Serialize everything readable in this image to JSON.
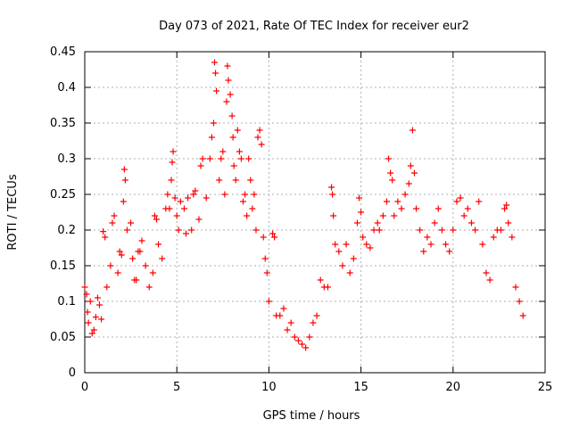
{
  "chart_data": {
    "type": "scatter",
    "title": "Day 073 of 2021, Rate Of TEC Index for receiver eur2",
    "xlabel": "GPS time / hours",
    "ylabel": "ROTI / TECUs",
    "xlim": [
      0,
      25
    ],
    "ylim": [
      0,
      0.45
    ],
    "xticks": [
      0,
      5,
      10,
      15,
      20,
      25
    ],
    "xtick_labels": [
      "0",
      "5",
      "10",
      "15",
      "20",
      "25"
    ],
    "yticks": [
      0,
      0.05,
      0.1,
      0.15,
      0.2,
      0.25,
      0.3,
      0.35,
      0.4,
      0.45
    ],
    "ytick_labels": [
      "0",
      "0.05",
      "0.1",
      "0.15",
      "0.2",
      "0.25",
      "0.3",
      "0.35",
      "0.4",
      "0.45"
    ],
    "grid": true,
    "marker": "plus",
    "marker_color": "#ff0000",
    "series": [
      {
        "values": [
          [
            0.0,
            0.12
          ],
          [
            0.1,
            0.11
          ],
          [
            0.15,
            0.085
          ],
          [
            0.2,
            0.07
          ],
          [
            0.3,
            0.1
          ],
          [
            0.4,
            0.055
          ],
          [
            0.5,
            0.06
          ],
          [
            0.6,
            0.078
          ],
          [
            0.7,
            0.105
          ],
          [
            0.8,
            0.095
          ],
          [
            0.9,
            0.075
          ],
          [
            1.0,
            0.198
          ],
          [
            1.1,
            0.19
          ],
          [
            1.2,
            0.12
          ],
          [
            1.4,
            0.15
          ],
          [
            1.5,
            0.21
          ],
          [
            1.6,
            0.22
          ],
          [
            1.8,
            0.14
          ],
          [
            1.9,
            0.17
          ],
          [
            2.0,
            0.165
          ],
          [
            2.1,
            0.24
          ],
          [
            2.15,
            0.285
          ],
          [
            2.2,
            0.27
          ],
          [
            2.3,
            0.2
          ],
          [
            2.5,
            0.21
          ],
          [
            2.6,
            0.16
          ],
          [
            2.7,
            0.13
          ],
          [
            2.8,
            0.13
          ],
          [
            2.9,
            0.17
          ],
          [
            3.0,
            0.17
          ],
          [
            3.1,
            0.185
          ],
          [
            3.3,
            0.15
          ],
          [
            3.5,
            0.12
          ],
          [
            3.7,
            0.14
          ],
          [
            3.8,
            0.22
          ],
          [
            3.9,
            0.215
          ],
          [
            4.0,
            0.18
          ],
          [
            4.2,
            0.16
          ],
          [
            4.4,
            0.23
          ],
          [
            4.5,
            0.25
          ],
          [
            4.6,
            0.23
          ],
          [
            4.7,
            0.27
          ],
          [
            4.75,
            0.295
          ],
          [
            4.8,
            0.31
          ],
          [
            4.9,
            0.245
          ],
          [
            5.0,
            0.22
          ],
          [
            5.1,
            0.2
          ],
          [
            5.2,
            0.24
          ],
          [
            5.4,
            0.23
          ],
          [
            5.5,
            0.195
          ],
          [
            5.6,
            0.245
          ],
          [
            5.8,
            0.2
          ],
          [
            5.9,
            0.25
          ],
          [
            6.0,
            0.255
          ],
          [
            6.2,
            0.215
          ],
          [
            6.3,
            0.29
          ],
          [
            6.4,
            0.3
          ],
          [
            6.6,
            0.245
          ],
          [
            6.8,
            0.3
          ],
          [
            6.9,
            0.33
          ],
          [
            7.0,
            0.35
          ],
          [
            7.05,
            0.435
          ],
          [
            7.1,
            0.42
          ],
          [
            7.15,
            0.395
          ],
          [
            7.3,
            0.27
          ],
          [
            7.4,
            0.3
          ],
          [
            7.5,
            0.31
          ],
          [
            7.6,
            0.25
          ],
          [
            7.7,
            0.38
          ],
          [
            7.75,
            0.43
          ],
          [
            7.8,
            0.41
          ],
          [
            7.9,
            0.39
          ],
          [
            8.0,
            0.36
          ],
          [
            8.05,
            0.33
          ],
          [
            8.1,
            0.29
          ],
          [
            8.2,
            0.27
          ],
          [
            8.3,
            0.34
          ],
          [
            8.4,
            0.31
          ],
          [
            8.5,
            0.3
          ],
          [
            8.6,
            0.24
          ],
          [
            8.7,
            0.25
          ],
          [
            8.8,
            0.22
          ],
          [
            8.9,
            0.3
          ],
          [
            9.0,
            0.27
          ],
          [
            9.1,
            0.23
          ],
          [
            9.2,
            0.25
          ],
          [
            9.3,
            0.2
          ],
          [
            9.4,
            0.33
          ],
          [
            9.5,
            0.34
          ],
          [
            9.6,
            0.32
          ],
          [
            9.7,
            0.19
          ],
          [
            9.8,
            0.16
          ],
          [
            9.9,
            0.14
          ],
          [
            10.0,
            0.1
          ],
          [
            10.2,
            0.195
          ],
          [
            10.3,
            0.19
          ],
          [
            10.4,
            0.08
          ],
          [
            10.6,
            0.08
          ],
          [
            10.8,
            0.09
          ],
          [
            11.0,
            0.06
          ],
          [
            11.2,
            0.07
          ],
          [
            11.4,
            0.05
          ],
          [
            11.6,
            0.045
          ],
          [
            11.8,
            0.04
          ],
          [
            12.0,
            0.035
          ],
          [
            12.2,
            0.05
          ],
          [
            12.4,
            0.07
          ],
          [
            12.6,
            0.08
          ],
          [
            12.8,
            0.13
          ],
          [
            13.0,
            0.12
          ],
          [
            13.2,
            0.12
          ],
          [
            13.4,
            0.26
          ],
          [
            13.45,
            0.25
          ],
          [
            13.5,
            0.22
          ],
          [
            13.6,
            0.18
          ],
          [
            13.8,
            0.17
          ],
          [
            14.0,
            0.15
          ],
          [
            14.2,
            0.18
          ],
          [
            14.4,
            0.14
          ],
          [
            14.6,
            0.16
          ],
          [
            14.8,
            0.21
          ],
          [
            14.9,
            0.245
          ],
          [
            15.0,
            0.225
          ],
          [
            15.1,
            0.19
          ],
          [
            15.3,
            0.18
          ],
          [
            15.5,
            0.175
          ],
          [
            15.7,
            0.2
          ],
          [
            15.9,
            0.21
          ],
          [
            16.0,
            0.2
          ],
          [
            16.2,
            0.22
          ],
          [
            16.4,
            0.24
          ],
          [
            16.5,
            0.3
          ],
          [
            16.6,
            0.28
          ],
          [
            16.7,
            0.27
          ],
          [
            16.8,
            0.22
          ],
          [
            17.0,
            0.24
          ],
          [
            17.2,
            0.23
          ],
          [
            17.4,
            0.25
          ],
          [
            17.6,
            0.265
          ],
          [
            17.7,
            0.29
          ],
          [
            17.8,
            0.34
          ],
          [
            17.9,
            0.28
          ],
          [
            18.0,
            0.23
          ],
          [
            18.2,
            0.2
          ],
          [
            18.4,
            0.17
          ],
          [
            18.6,
            0.19
          ],
          [
            18.8,
            0.18
          ],
          [
            19.0,
            0.21
          ],
          [
            19.2,
            0.23
          ],
          [
            19.4,
            0.2
          ],
          [
            19.6,
            0.18
          ],
          [
            19.8,
            0.17
          ],
          [
            20.0,
            0.2
          ],
          [
            20.2,
            0.24
          ],
          [
            20.4,
            0.245
          ],
          [
            20.6,
            0.22
          ],
          [
            20.8,
            0.23
          ],
          [
            21.0,
            0.21
          ],
          [
            21.2,
            0.2
          ],
          [
            21.4,
            0.24
          ],
          [
            21.6,
            0.18
          ],
          [
            21.8,
            0.14
          ],
          [
            22.0,
            0.13
          ],
          [
            22.2,
            0.19
          ],
          [
            22.4,
            0.2
          ],
          [
            22.6,
            0.2
          ],
          [
            22.8,
            0.23
          ],
          [
            22.9,
            0.235
          ],
          [
            23.0,
            0.21
          ],
          [
            23.2,
            0.19
          ],
          [
            23.4,
            0.12
          ],
          [
            23.6,
            0.1
          ],
          [
            23.8,
            0.08
          ]
        ]
      }
    ]
  }
}
